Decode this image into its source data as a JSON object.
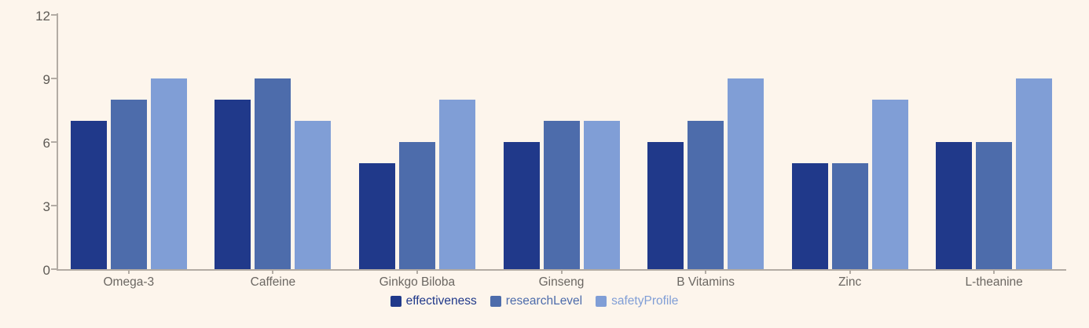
{
  "chart_data": {
    "type": "bar",
    "title": "",
    "xlabel": "",
    "ylabel": "",
    "categories": [
      "Omega-3",
      "Caffeine",
      "Ginkgo Biloba",
      "Ginseng",
      "B Vitamins",
      "Zinc",
      "L-theanine"
    ],
    "series": [
      {
        "name": "effectiveness",
        "color": "#20398a",
        "values": [
          7,
          8,
          5,
          6,
          6,
          5,
          6
        ]
      },
      {
        "name": "researchLevel",
        "color": "#4d6cab",
        "values": [
          8,
          9,
          6,
          7,
          7,
          5,
          6
        ]
      },
      {
        "name": "safetyProfile",
        "color": "#809ed6",
        "values": [
          9,
          7,
          8,
          7,
          9,
          8,
          9
        ]
      }
    ],
    "ylim": [
      0,
      12
    ],
    "y_ticks": [
      0,
      3,
      6,
      9,
      12
    ],
    "y_tick_labels": [
      "0",
      "3",
      "6",
      "9",
      "12"
    ],
    "grid": false,
    "legend_position": "bottom"
  },
  "colors": {
    "background": "#fdf5ec",
    "axis": "#b3aca4",
    "y_tick_label": "#5e5a55",
    "x_tick_label": "#6b6762"
  }
}
